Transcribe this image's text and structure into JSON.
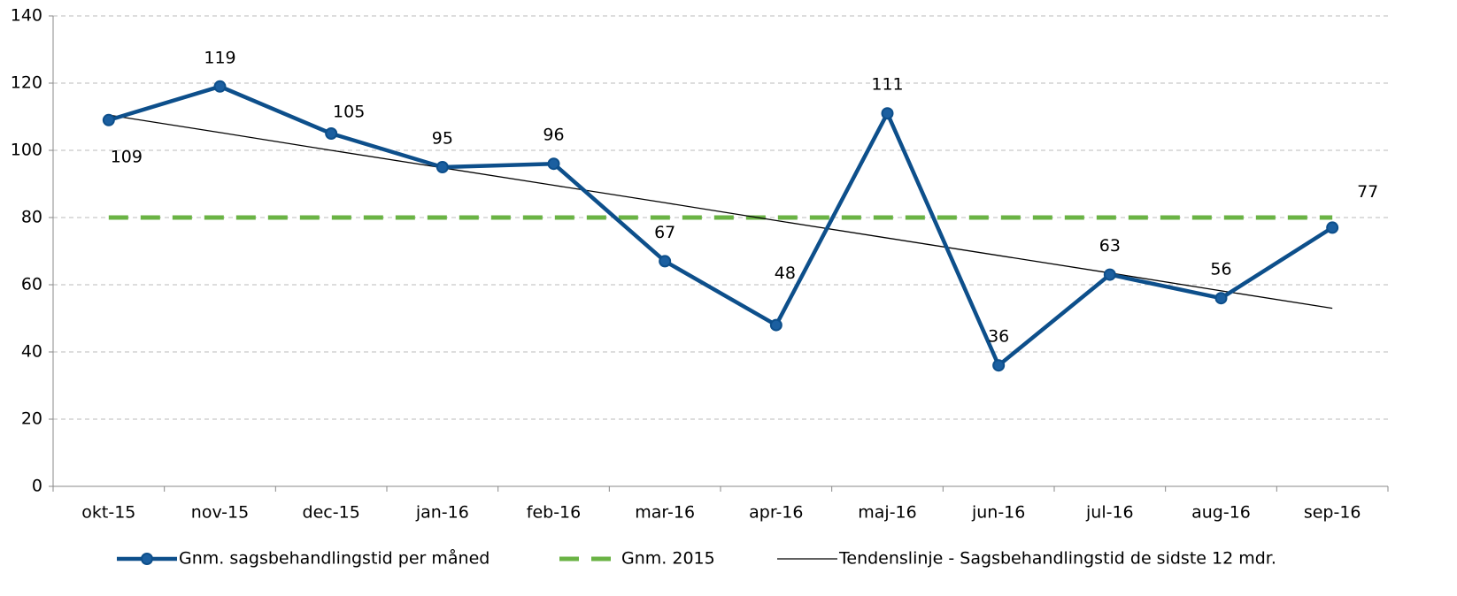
{
  "chart_data": {
    "type": "line",
    "categories": [
      "okt-15",
      "nov-15",
      "dec-15",
      "jan-16",
      "feb-16",
      "mar-16",
      "apr-16",
      "maj-16",
      "jun-16",
      "jul-16",
      "aug-16",
      "sep-16"
    ],
    "series": [
      {
        "name": "Gnm. sagsbehandlingstid per måned",
        "color": "#0d4f8b",
        "style": "markers",
        "data_labels": true,
        "values": [
          109,
          119,
          105,
          95,
          96,
          67,
          48,
          111,
          36,
          63,
          56,
          77
        ]
      },
      {
        "name": "Gnm. 2015",
        "color": "#6ab344",
        "style": "dashed",
        "values": [
          80,
          80,
          80,
          80,
          80,
          80,
          80,
          80,
          80,
          80,
          80,
          80
        ]
      },
      {
        "name": "Tendenslinje - Sagsbehandlingstid de sidste 12 mdr.",
        "color": "#000000",
        "style": "thin",
        "values": [
          110.5,
          105.3,
          100.0,
          94.8,
          89.6,
          84.4,
          79.1,
          73.9,
          68.7,
          63.5,
          58.2,
          53.0
        ]
      }
    ],
    "ylim": [
      0,
      140
    ],
    "yticks": [
      0,
      20,
      40,
      60,
      80,
      100,
      120,
      140
    ],
    "grid": true
  }
}
